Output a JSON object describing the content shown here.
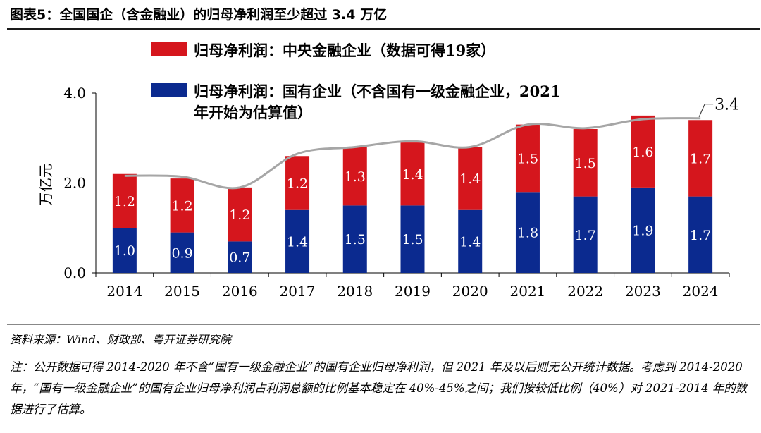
{
  "header": {
    "title": "图表5：全国国企（含金融业）的归母净利润至少超过 3.4 万亿"
  },
  "chart_data": {
    "type": "bar",
    "stacked": true,
    "categories": [
      "2014",
      "2015",
      "2016",
      "2017",
      "2018",
      "2019",
      "2020",
      "2021",
      "2022",
      "2023",
      "2024"
    ],
    "series": [
      {
        "name": "归母净利润：国有企业（不含国有一级金融企业，2021年开始为估算值）",
        "color": "#0b2a8f",
        "values": [
          1.0,
          0.9,
          0.7,
          1.4,
          1.5,
          1.5,
          1.4,
          1.8,
          1.7,
          1.9,
          1.7
        ]
      },
      {
        "name": "归母净利润：中央金融企业（数据可得19家）",
        "color": "#d5161d",
        "values": [
          1.2,
          1.2,
          1.2,
          1.2,
          1.3,
          1.4,
          1.4,
          1.5,
          1.5,
          1.6,
          1.7
        ]
      }
    ],
    "segment_labels": [
      [
        "1.0",
        "0.9",
        "0.7",
        "1.4",
        "1.5",
        "1.5",
        "1.4",
        "1.8",
        "1.7",
        "1.9",
        "1.7"
      ],
      [
        "1.2",
        "1.2",
        "1.2",
        "1.2",
        "1.3",
        "1.4",
        "1.4",
        "1.5",
        "1.5",
        "1.6",
        "1.7"
      ]
    ],
    "totals": [
      2.16,
      2.14,
      1.9,
      2.65,
      2.8,
      2.93,
      2.8,
      3.3,
      3.22,
      3.42,
      3.44
    ],
    "total_line_color": "#a6a6a6",
    "annotation": "3.4",
    "ylabel": "万亿元",
    "ylim": [
      0,
      4
    ],
    "yticks": [
      "0.0",
      "2.0",
      "4.0"
    ],
    "grid": false,
    "legend_position": "top-center"
  },
  "legend": {
    "items": [
      {
        "lines": [
          "归母净利润：中央金融企业（数据可得19家）"
        ]
      },
      {
        "lines": [
          "归母净利润：国有企业（不含国有一级金融企业，2021",
          "年开始为估算值）"
        ]
      }
    ]
  },
  "footer": {
    "source": "资料来源：Wind、财政部、粤开证券研究院",
    "note": "注：公开数据可得 2014-2020 年不含“国有一级金融企业”的国有企业归母净利润，但 2021 年及以后则无公开统计数据。考虑到 2014-2020 年，“国有一级金融企业”的国有企业归母净利润占利润总额的比例基本稳定在 40%-45%之间；我们按较低比例（40%）对 2021-2014 年的数据进行了估算。"
  }
}
